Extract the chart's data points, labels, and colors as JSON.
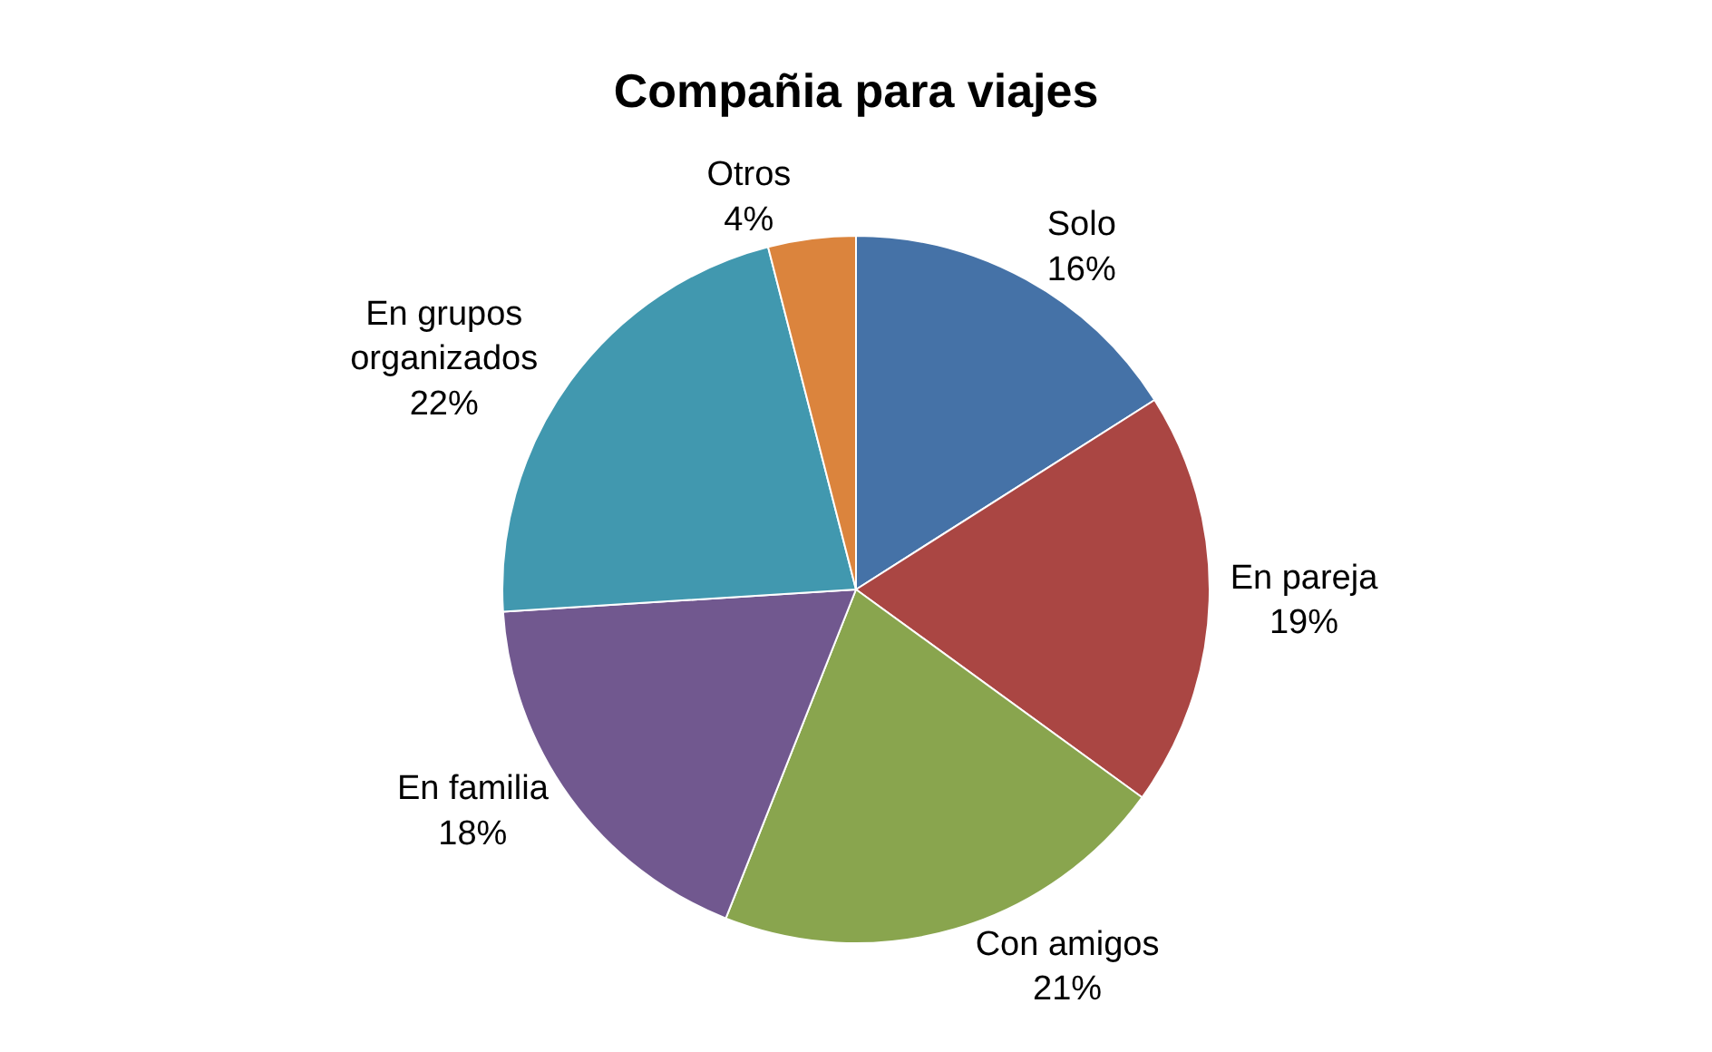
{
  "chart_data": {
    "type": "pie",
    "title": "Compañia para viajes",
    "categories": [
      "Solo",
      "En pareja",
      "Con amigos",
      "En familia",
      "En grupos organizados",
      "Otros"
    ],
    "values": [
      16,
      19,
      21,
      18,
      22,
      4
    ],
    "value_labels": [
      "16%",
      "19%",
      "21%",
      "18%",
      "22%",
      "4%"
    ],
    "colors": [
      "#4572a7",
      "#aa4643",
      "#89a54e",
      "#71588f",
      "#4198af",
      "#db843d"
    ]
  }
}
